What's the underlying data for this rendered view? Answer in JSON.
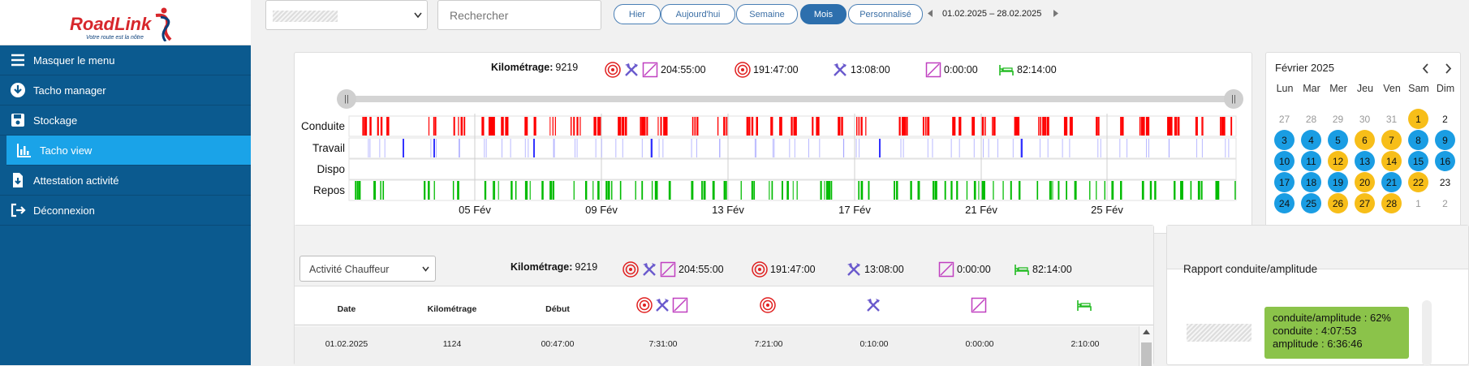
{
  "logo": {
    "name": "RoadLink",
    "tagline": "Votre route est la nôtre"
  },
  "sidebar": {
    "items": [
      {
        "label": "Masquer le menu",
        "icon": "menu-icon"
      },
      {
        "label": "Tacho manager",
        "icon": "download-icon"
      },
      {
        "label": "Stockage",
        "icon": "save-icon"
      },
      {
        "label": "Tacho view",
        "icon": "chart-icon",
        "active": true
      },
      {
        "label": "Attestation activité",
        "icon": "file-download-icon"
      },
      {
        "label": "Déconnexion",
        "icon": "logout-icon"
      }
    ]
  },
  "toolbar": {
    "search_placeholder": "Rechercher",
    "periods": [
      "Hier",
      "Aujourd'hui",
      "Semaine",
      "Mois",
      "Personnalisé"
    ],
    "active_period": "Mois",
    "date_range": "01.02.2025 – 28.02.2025"
  },
  "summary": {
    "km_label": "Kilométrage:",
    "km_value": "9219",
    "total_time": "204:55:00",
    "driving_time": "191:47:00",
    "work_time": "13:08:00",
    "dispo_time": "0:00:00",
    "rest_time": "82:14:00"
  },
  "timeline": {
    "rows": [
      "Conduite",
      "Travail",
      "Dispo",
      "Repos"
    ],
    "date_ticks": [
      "05 Fév",
      "09 Fév",
      "13 Fév",
      "17 Fév",
      "21 Fév",
      "25 Fév"
    ],
    "colors": {
      "driving": "#ff0000",
      "work": "#3333ff",
      "rest": "#00bb00"
    }
  },
  "calendar": {
    "month": "Février 2025",
    "weekdays": [
      "Lun",
      "Mar",
      "Mer",
      "Jeu",
      "Ven",
      "Sam",
      "Dim"
    ],
    "weeks": [
      [
        [
          "27",
          "muted"
        ],
        [
          "28",
          "muted"
        ],
        [
          "29",
          "muted"
        ],
        [
          "30",
          "muted"
        ],
        [
          "31",
          "muted"
        ],
        [
          "1",
          "yellow"
        ],
        [
          "2",
          ""
        ]
      ],
      [
        [
          "3",
          "blue"
        ],
        [
          "4",
          "blue"
        ],
        [
          "5",
          "blue"
        ],
        [
          "6",
          "yellow"
        ],
        [
          "7",
          "yellow"
        ],
        [
          "8",
          "blue"
        ],
        [
          "9",
          "blue"
        ]
      ],
      [
        [
          "10",
          "blue"
        ],
        [
          "11",
          "blue"
        ],
        [
          "12",
          "yellow"
        ],
        [
          "13",
          "blue"
        ],
        [
          "14",
          "yellow"
        ],
        [
          "15",
          "blue"
        ],
        [
          "16",
          "blue"
        ]
      ],
      [
        [
          "17",
          "blue"
        ],
        [
          "18",
          "blue"
        ],
        [
          "19",
          "blue"
        ],
        [
          "20",
          "yellow"
        ],
        [
          "21",
          "blue"
        ],
        [
          "22",
          "yellow"
        ],
        [
          "23",
          ""
        ]
      ],
      [
        [
          "24",
          "blue"
        ],
        [
          "25",
          "blue"
        ],
        [
          "26",
          "yellow"
        ],
        [
          "27",
          "yellow"
        ],
        [
          "28",
          "yellow"
        ],
        [
          "1",
          "muted"
        ],
        [
          "2",
          "muted"
        ]
      ]
    ]
  },
  "activity": {
    "select_value": "Activité Chauffeur",
    "columns": [
      "Date",
      "Kilométrage",
      "Début"
    ],
    "row": [
      "01.02.2025",
      "1124",
      "00:47:00",
      "7:31:00",
      "7:21:00",
      "0:10:00",
      "0:00:00",
      "2:10:00"
    ]
  },
  "rapport": {
    "title": "Rapport conduite/amplitude",
    "tooltip": [
      "conduite/amplitude : 62%",
      "conduite : 4:07:53",
      "amplitude : 6:36:46"
    ]
  }
}
